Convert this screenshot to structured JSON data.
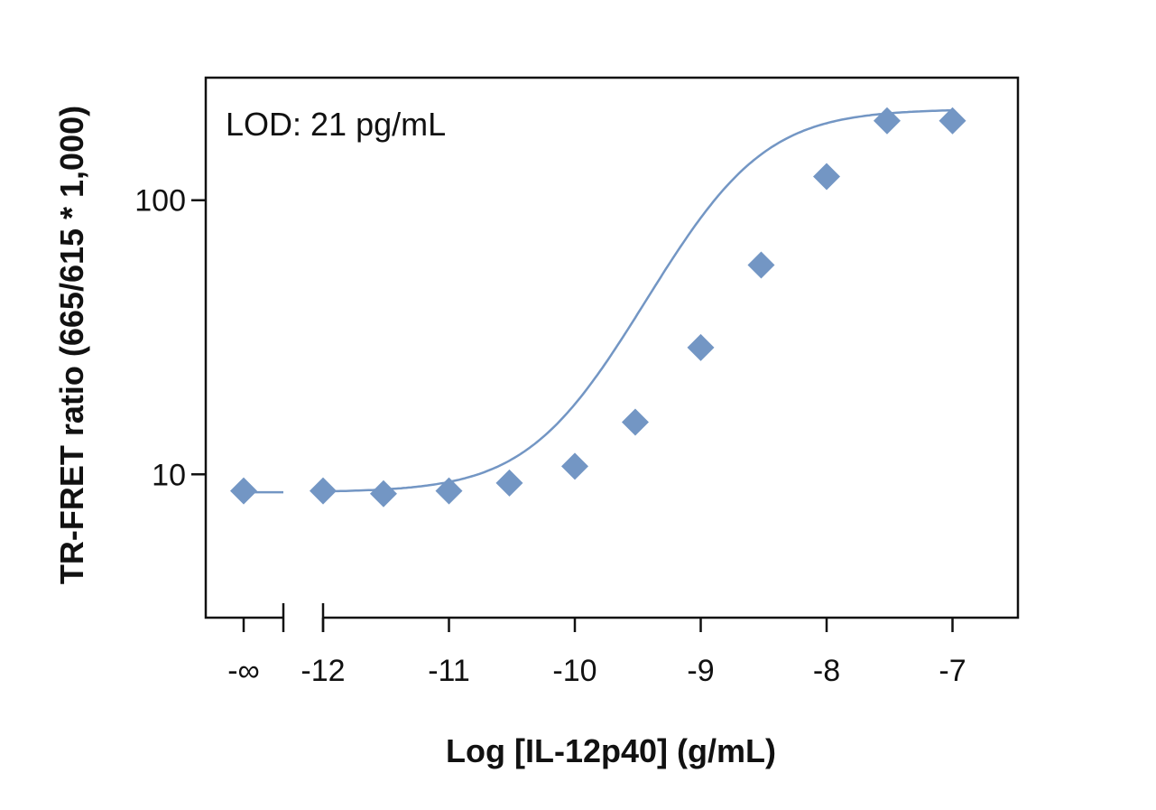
{
  "chart_data": {
    "type": "scatter",
    "title": "",
    "annotation": "LOD: 21 pg/mL",
    "xlabel": "Log [IL-12p40] (g/mL)",
    "ylabel": "TR-FRET ratio (665/615 * 1,000)",
    "x_axis_break": true,
    "x_ticks": [
      {
        "value": "-inf",
        "label": "-∞"
      },
      {
        "value": -12,
        "label": "-12"
      },
      {
        "value": -11,
        "label": "-11"
      },
      {
        "value": -10,
        "label": "-10"
      },
      {
        "value": -9,
        "label": "-9"
      },
      {
        "value": -8,
        "label": "-8"
      },
      {
        "value": -7,
        "label": "-7"
      }
    ],
    "y_scale": "log",
    "y_ticks": [
      {
        "value": 10,
        "label": "10"
      },
      {
        "value": 100,
        "label": "100"
      }
    ],
    "xlim": [
      -12.95,
      -6.5
    ],
    "ylim": [
      3,
      280
    ],
    "grid": false,
    "series": [
      {
        "marker": "diamond",
        "color": "#7396c4",
        "points": [
          {
            "x": "-inf",
            "y": 8.7
          },
          {
            "x": -12,
            "y": 8.7
          },
          {
            "x": -11.52,
            "y": 8.5
          },
          {
            "x": -11,
            "y": 8.7
          },
          {
            "x": -10.52,
            "y": 9.3
          },
          {
            "x": -10,
            "y": 10.7
          },
          {
            "x": -9.52,
            "y": 15.5
          },
          {
            "x": -9,
            "y": 29
          },
          {
            "x": -8.52,
            "y": 58
          },
          {
            "x": -8,
            "y": 122
          },
          {
            "x": -7.52,
            "y": 195
          },
          {
            "x": -7,
            "y": 195
          }
        ]
      }
    ],
    "fit_curve": {
      "color": "#7396c4",
      "model": "4PL",
      "bottom": 8.6,
      "top": 215,
      "log_ec50": -8.8,
      "hill": 1.1
    }
  }
}
